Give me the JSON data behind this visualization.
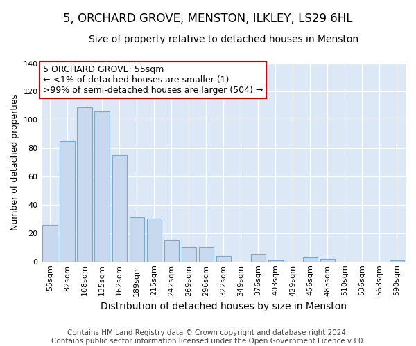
{
  "title": "5, ORCHARD GROVE, MENSTON, ILKLEY, LS29 6HL",
  "subtitle": "Size of property relative to detached houses in Menston",
  "xlabel": "Distribution of detached houses by size in Menston",
  "ylabel": "Number of detached properties",
  "categories": [
    "55sqm",
    "82sqm",
    "108sqm",
    "135sqm",
    "162sqm",
    "189sqm",
    "215sqm",
    "242sqm",
    "269sqm",
    "296sqm",
    "322sqm",
    "349sqm",
    "376sqm",
    "403sqm",
    "429sqm",
    "456sqm",
    "483sqm",
    "510sqm",
    "536sqm",
    "563sqm",
    "590sqm"
  ],
  "values": [
    26,
    85,
    109,
    106,
    75,
    31,
    30,
    15,
    10,
    10,
    4,
    0,
    5,
    1,
    0,
    3,
    2,
    0,
    0,
    0,
    1
  ],
  "bar_color": "#c8d8ee",
  "bar_edge_color": "#7aaacb",
  "plot_bg_color": "#dce8f5",
  "fig_bg_color": "#ffffff",
  "grid_color": "#ffffff",
  "ylim": [
    0,
    140
  ],
  "yticks": [
    0,
    20,
    40,
    60,
    80,
    100,
    120,
    140
  ],
  "annotation_box_text": "5 ORCHARD GROVE: 55sqm\n← <1% of detached houses are smaller (1)\n>99% of semi-detached houses are larger (504) →",
  "annotation_box_color": "#ffffff",
  "annotation_box_edge_color": "#cc0000",
  "footer_text": "Contains HM Land Registry data © Crown copyright and database right 2024.\nContains public sector information licensed under the Open Government Licence v3.0.",
  "title_fontsize": 12,
  "subtitle_fontsize": 10,
  "xlabel_fontsize": 10,
  "ylabel_fontsize": 9,
  "tick_fontsize": 8,
  "annotation_fontsize": 9,
  "footer_fontsize": 7.5
}
